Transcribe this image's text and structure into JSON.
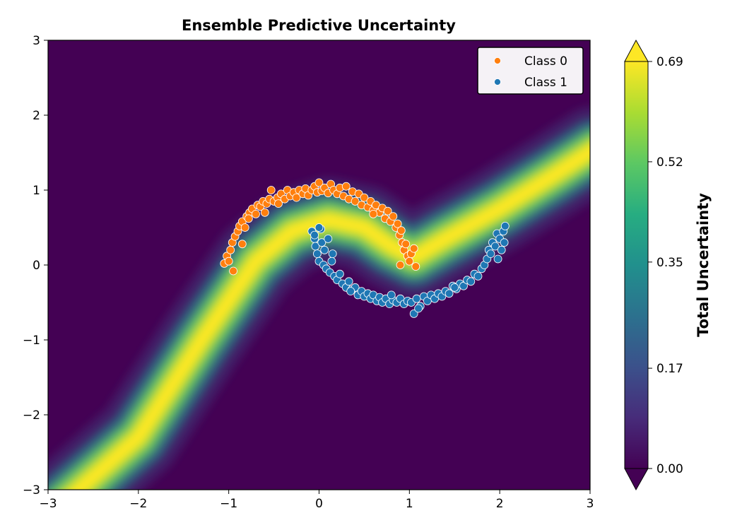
{
  "chart_data": {
    "type": "scatter",
    "title": "Ensemble Predictive Uncertainty",
    "xlabel": "",
    "ylabel": "",
    "xlim": [
      -3,
      3
    ],
    "ylim": [
      -3,
      3
    ],
    "x_ticks": [
      -3,
      -2,
      -1,
      0,
      1,
      2,
      3
    ],
    "y_ticks": [
      -3,
      -2,
      -1,
      0,
      1,
      2,
      3
    ],
    "x_tick_labels": [
      "−3",
      "−2",
      "−1",
      "0",
      "1",
      "2",
      "3"
    ],
    "y_tick_labels": [
      "−3",
      "−2",
      "−1",
      "0",
      "1",
      "2",
      "3"
    ],
    "grid": false,
    "background": {
      "type": "heatmap",
      "description_quantity": "Total Uncertainty",
      "colormap": "viridis",
      "band_centerline": [
        [
          -2.85,
          -3.2
        ],
        [
          -2.0,
          -2.3
        ],
        [
          -1.3,
          -1.0
        ],
        [
          -0.7,
          0.05
        ],
        [
          -0.3,
          0.45
        ],
        [
          0.1,
          0.6
        ],
        [
          0.5,
          0.5
        ],
        [
          0.8,
          0.25
        ],
        [
          1.05,
          0.1
        ],
        [
          1.4,
          0.35
        ],
        [
          2.0,
          0.75
        ],
        [
          2.6,
          1.2
        ],
        [
          3.05,
          1.55
        ]
      ],
      "peak_value": 0.69
    },
    "series": [
      {
        "name": "Class 0",
        "color": "#ff7f0e",
        "points": [
          [
            -1.05,
            0.02
          ],
          [
            -1.02,
            0.12
          ],
          [
            -0.98,
            0.2
          ],
          [
            -0.96,
            0.3
          ],
          [
            -0.93,
            0.38
          ],
          [
            -0.9,
            0.45
          ],
          [
            -0.88,
            0.52
          ],
          [
            -0.85,
            0.58
          ],
          [
            -0.82,
            0.5
          ],
          [
            -0.8,
            0.65
          ],
          [
            -0.77,
            0.7
          ],
          [
            -0.74,
            0.75
          ],
          [
            -0.7,
            0.68
          ],
          [
            -0.68,
            0.8
          ],
          [
            -0.65,
            0.78
          ],
          [
            -0.62,
            0.85
          ],
          [
            -0.58,
            0.82
          ],
          [
            -0.55,
            0.88
          ],
          [
            -0.53,
            1.0
          ],
          [
            -0.5,
            0.85
          ],
          [
            -0.46,
            0.9
          ],
          [
            -0.42,
            0.95
          ],
          [
            -0.38,
            0.88
          ],
          [
            -0.35,
            1.0
          ],
          [
            -0.32,
            0.92
          ],
          [
            -0.28,
            0.97
          ],
          [
            -0.25,
            0.9
          ],
          [
            -0.22,
            1.0
          ],
          [
            -0.18,
            0.95
          ],
          [
            -0.15,
            1.02
          ],
          [
            -0.12,
            0.93
          ],
          [
            -0.08,
            1.0
          ],
          [
            -0.05,
            1.05
          ],
          [
            -0.02,
            0.97
          ],
          [
            0.0,
            1.1
          ],
          [
            0.03,
            0.99
          ],
          [
            0.06,
            1.03
          ],
          [
            0.1,
            0.96
          ],
          [
            0.13,
            1.08
          ],
          [
            0.16,
            1.0
          ],
          [
            0.2,
            0.95
          ],
          [
            0.23,
            1.03
          ],
          [
            0.27,
            0.92
          ],
          [
            0.3,
            1.05
          ],
          [
            0.33,
            0.88
          ],
          [
            0.37,
            0.98
          ],
          [
            0.4,
            0.85
          ],
          [
            0.44,
            0.95
          ],
          [
            0.47,
            0.8
          ],
          [
            0.5,
            0.9
          ],
          [
            0.54,
            0.77
          ],
          [
            0.57,
            0.85
          ],
          [
            0.6,
            0.73
          ],
          [
            0.63,
            0.8
          ],
          [
            0.67,
            0.7
          ],
          [
            0.7,
            0.76
          ],
          [
            0.73,
            0.62
          ],
          [
            0.76,
            0.72
          ],
          [
            0.79,
            0.58
          ],
          [
            0.82,
            0.65
          ],
          [
            0.85,
            0.5
          ],
          [
            0.87,
            0.55
          ],
          [
            0.89,
            0.4
          ],
          [
            0.91,
            0.46
          ],
          [
            0.92,
            0.3
          ],
          [
            0.94,
            0.2
          ],
          [
            0.96,
            0.28
          ],
          [
            0.98,
            0.12
          ],
          [
            1.0,
            0.05
          ],
          [
            1.02,
            0.15
          ],
          [
            1.05,
            0.22
          ],
          [
            1.07,
            -0.02
          ],
          [
            -0.85,
            0.28
          ],
          [
            -0.95,
            -0.08
          ],
          [
            -1.0,
            0.05
          ],
          [
            -0.78,
            0.62
          ],
          [
            -0.6,
            0.7
          ],
          [
            -0.45,
            0.82
          ],
          [
            0.6,
            0.68
          ],
          [
            0.9,
            0.0
          ]
        ]
      },
      {
        "name": "Class 1",
        "color": "#1f77b4",
        "points": [
          [
            -0.08,
            0.45
          ],
          [
            -0.05,
            0.35
          ],
          [
            -0.04,
            0.25
          ],
          [
            -0.02,
            0.15
          ],
          [
            0.0,
            0.05
          ],
          [
            0.02,
            0.48
          ],
          [
            0.03,
            0.3
          ],
          [
            0.05,
            0.0
          ],
          [
            0.06,
            0.2
          ],
          [
            0.08,
            -0.05
          ],
          [
            0.1,
            0.35
          ],
          [
            0.12,
            -0.1
          ],
          [
            0.14,
            0.05
          ],
          [
            0.17,
            -0.15
          ],
          [
            0.2,
            -0.2
          ],
          [
            0.23,
            -0.12
          ],
          [
            0.26,
            -0.25
          ],
          [
            0.3,
            -0.3
          ],
          [
            0.33,
            -0.22
          ],
          [
            0.36,
            -0.33
          ],
          [
            0.4,
            -0.3
          ],
          [
            0.43,
            -0.4
          ],
          [
            0.47,
            -0.35
          ],
          [
            0.5,
            -0.42
          ],
          [
            0.54,
            -0.38
          ],
          [
            0.57,
            -0.45
          ],
          [
            0.6,
            -0.4
          ],
          [
            0.64,
            -0.48
          ],
          [
            0.67,
            -0.43
          ],
          [
            0.7,
            -0.5
          ],
          [
            0.74,
            -0.45
          ],
          [
            0.78,
            -0.52
          ],
          [
            0.82,
            -0.47
          ],
          [
            0.86,
            -0.5
          ],
          [
            0.9,
            -0.45
          ],
          [
            0.94,
            -0.52
          ],
          [
            0.98,
            -0.48
          ],
          [
            1.02,
            -0.5
          ],
          [
            1.05,
            -0.65
          ],
          [
            1.08,
            -0.45
          ],
          [
            1.12,
            -0.55
          ],
          [
            1.16,
            -0.42
          ],
          [
            1.2,
            -0.48
          ],
          [
            1.24,
            -0.4
          ],
          [
            1.28,
            -0.45
          ],
          [
            1.32,
            -0.38
          ],
          [
            1.36,
            -0.42
          ],
          [
            1.4,
            -0.35
          ],
          [
            1.44,
            -0.38
          ],
          [
            1.48,
            -0.28
          ],
          [
            1.52,
            -0.32
          ],
          [
            1.56,
            -0.25
          ],
          [
            1.6,
            -0.28
          ],
          [
            1.64,
            -0.2
          ],
          [
            1.68,
            -0.22
          ],
          [
            1.72,
            -0.12
          ],
          [
            1.76,
            -0.15
          ],
          [
            1.8,
            -0.05
          ],
          [
            1.83,
            0.0
          ],
          [
            1.86,
            0.08
          ],
          [
            1.88,
            0.2
          ],
          [
            1.9,
            0.15
          ],
          [
            1.92,
            0.3
          ],
          [
            1.95,
            0.25
          ],
          [
            1.97,
            0.42
          ],
          [
            2.0,
            0.35
          ],
          [
            2.02,
            0.2
          ],
          [
            2.04,
            0.45
          ],
          [
            2.06,
            0.52
          ],
          [
            -0.05,
            0.4
          ],
          [
            0.0,
            0.5
          ],
          [
            0.15,
            0.15
          ],
          [
            0.35,
            -0.35
          ],
          [
            0.8,
            -0.4
          ],
          [
            1.1,
            -0.58
          ],
          [
            1.5,
            -0.3
          ],
          [
            1.98,
            0.08
          ],
          [
            2.05,
            0.3
          ]
        ]
      }
    ],
    "legend": {
      "location": "top-right",
      "entries": [
        {
          "label": "Class 0",
          "color": "#ff7f0e"
        },
        {
          "label": "Class 1",
          "color": "#1f77b4"
        }
      ]
    },
    "colorbar": {
      "label": "Total Uncertainty",
      "min": 0.0,
      "max": 0.69,
      "extend": "both",
      "ticks": [
        0.0,
        0.17,
        0.35,
        0.52,
        0.69
      ],
      "tick_labels": [
        "0.00",
        "0.17",
        "0.35",
        "0.52",
        "0.69"
      ],
      "colormap": "viridis"
    }
  }
}
